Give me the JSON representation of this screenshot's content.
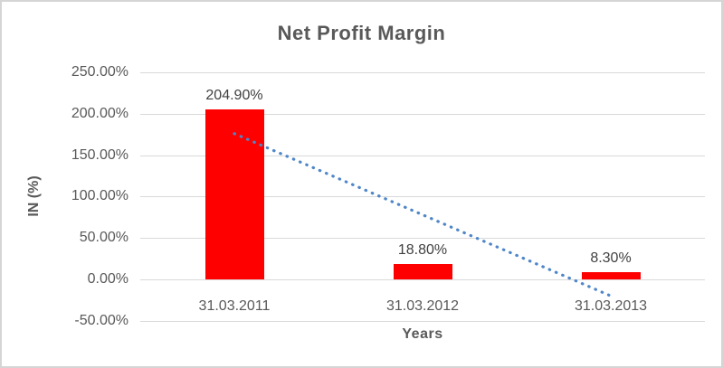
{
  "chart_data": {
    "type": "bar",
    "title": "Net Profit Margin",
    "xlabel": "Years",
    "ylabel": "IN (%)",
    "categories": [
      "31.03.2011",
      "31.03.2012",
      "31.03.2013"
    ],
    "values": [
      204.9,
      18.8,
      8.3
    ],
    "value_labels": [
      "204.90%",
      "18.80%",
      "8.30%"
    ],
    "series_name": "Net Profit Margin",
    "ylim": [
      -50,
      250
    ],
    "yticks": [
      {
        "value": 250,
        "label": "250.00%"
      },
      {
        "value": 200,
        "label": "200.00%"
      },
      {
        "value": 150,
        "label": "150.00%"
      },
      {
        "value": 100,
        "label": "100.00%"
      },
      {
        "value": 50,
        "label": "50.00%"
      },
      {
        "value": 0,
        "label": "0.00%"
      },
      {
        "value": -50,
        "label": "-50.00%"
      }
    ],
    "grid": true,
    "legend": "none",
    "trendline": {
      "kind": "linear",
      "style": "dotted",
      "x_categories": [
        0,
        2
      ],
      "y_values": [
        176,
        -20
      ]
    },
    "colors": {
      "bar": "#FF0000",
      "trend": "#4E86C8",
      "grid": "#D9D9D9",
      "axis_text": "#595959",
      "data_label": "#404040",
      "frame": "#D5D5D5"
    }
  }
}
